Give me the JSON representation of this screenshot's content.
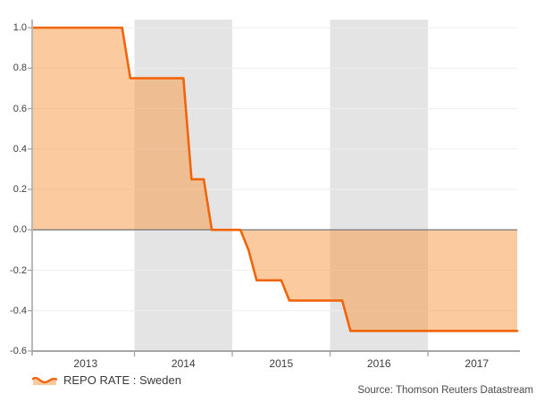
{
  "chart_data": {
    "type": "area",
    "title": "",
    "legend": "REPO RATE : Sweden",
    "source": "Source: Thomson Reuters Datastream",
    "xlim": [
      2012.954,
      2017.913
    ],
    "ylim": [
      -0.6,
      1.04
    ],
    "baseline": 0,
    "grid": true,
    "legend_position": "bottom-left",
    "series": [
      {
        "name": "REPO RATE : Sweden",
        "points": [
          [
            2012.954,
            1.0
          ],
          [
            2013.874,
            1.0
          ],
          [
            2013.958,
            0.75
          ],
          [
            2014.5,
            0.75
          ],
          [
            2014.583,
            0.25
          ],
          [
            2014.708,
            0.25
          ],
          [
            2014.791,
            0.0
          ],
          [
            2015.083,
            0.0
          ],
          [
            2015.166,
            -0.1
          ],
          [
            2015.249,
            -0.25
          ],
          [
            2015.5,
            -0.25
          ],
          [
            2015.583,
            -0.35
          ],
          [
            2016.124,
            -0.35
          ],
          [
            2016.208,
            -0.5
          ],
          [
            2017.913,
            -0.5
          ]
        ]
      }
    ],
    "y_ticks": [
      1.0,
      0.8,
      0.6,
      0.4,
      0.2,
      0.0,
      -0.2,
      -0.4,
      -0.6
    ],
    "y_tick_labels": [
      "1.0",
      "0.8",
      "0.6",
      "0.4",
      "0.2",
      "0.0",
      "-0.2",
      "-0.4",
      "-0.6"
    ],
    "x_year_labels": [
      "2013",
      "2014",
      "2015",
      "2016",
      "2017"
    ],
    "x_label_positions": [
      2013.5,
      2014.5,
      2015.5,
      2016.5,
      2017.5
    ],
    "x_boundary_ticks": [
      2014,
      2015,
      2016,
      2017
    ],
    "bands": [
      [
        2014,
        2015
      ],
      [
        2016,
        2017
      ]
    ],
    "colors": {
      "line": "#f0640a",
      "fill": "rgba(250,150,64,0.5)",
      "band": "#e4e4e4",
      "grid": "#eceeef",
      "zero_line": "#7f7f7f",
      "y_axis": "#b8b8b8",
      "x_axis": "#a6a6a6",
      "tick": "#a6a6a6",
      "label_text": "#3d3d3d",
      "source_text": "#4a4a4a"
    }
  }
}
